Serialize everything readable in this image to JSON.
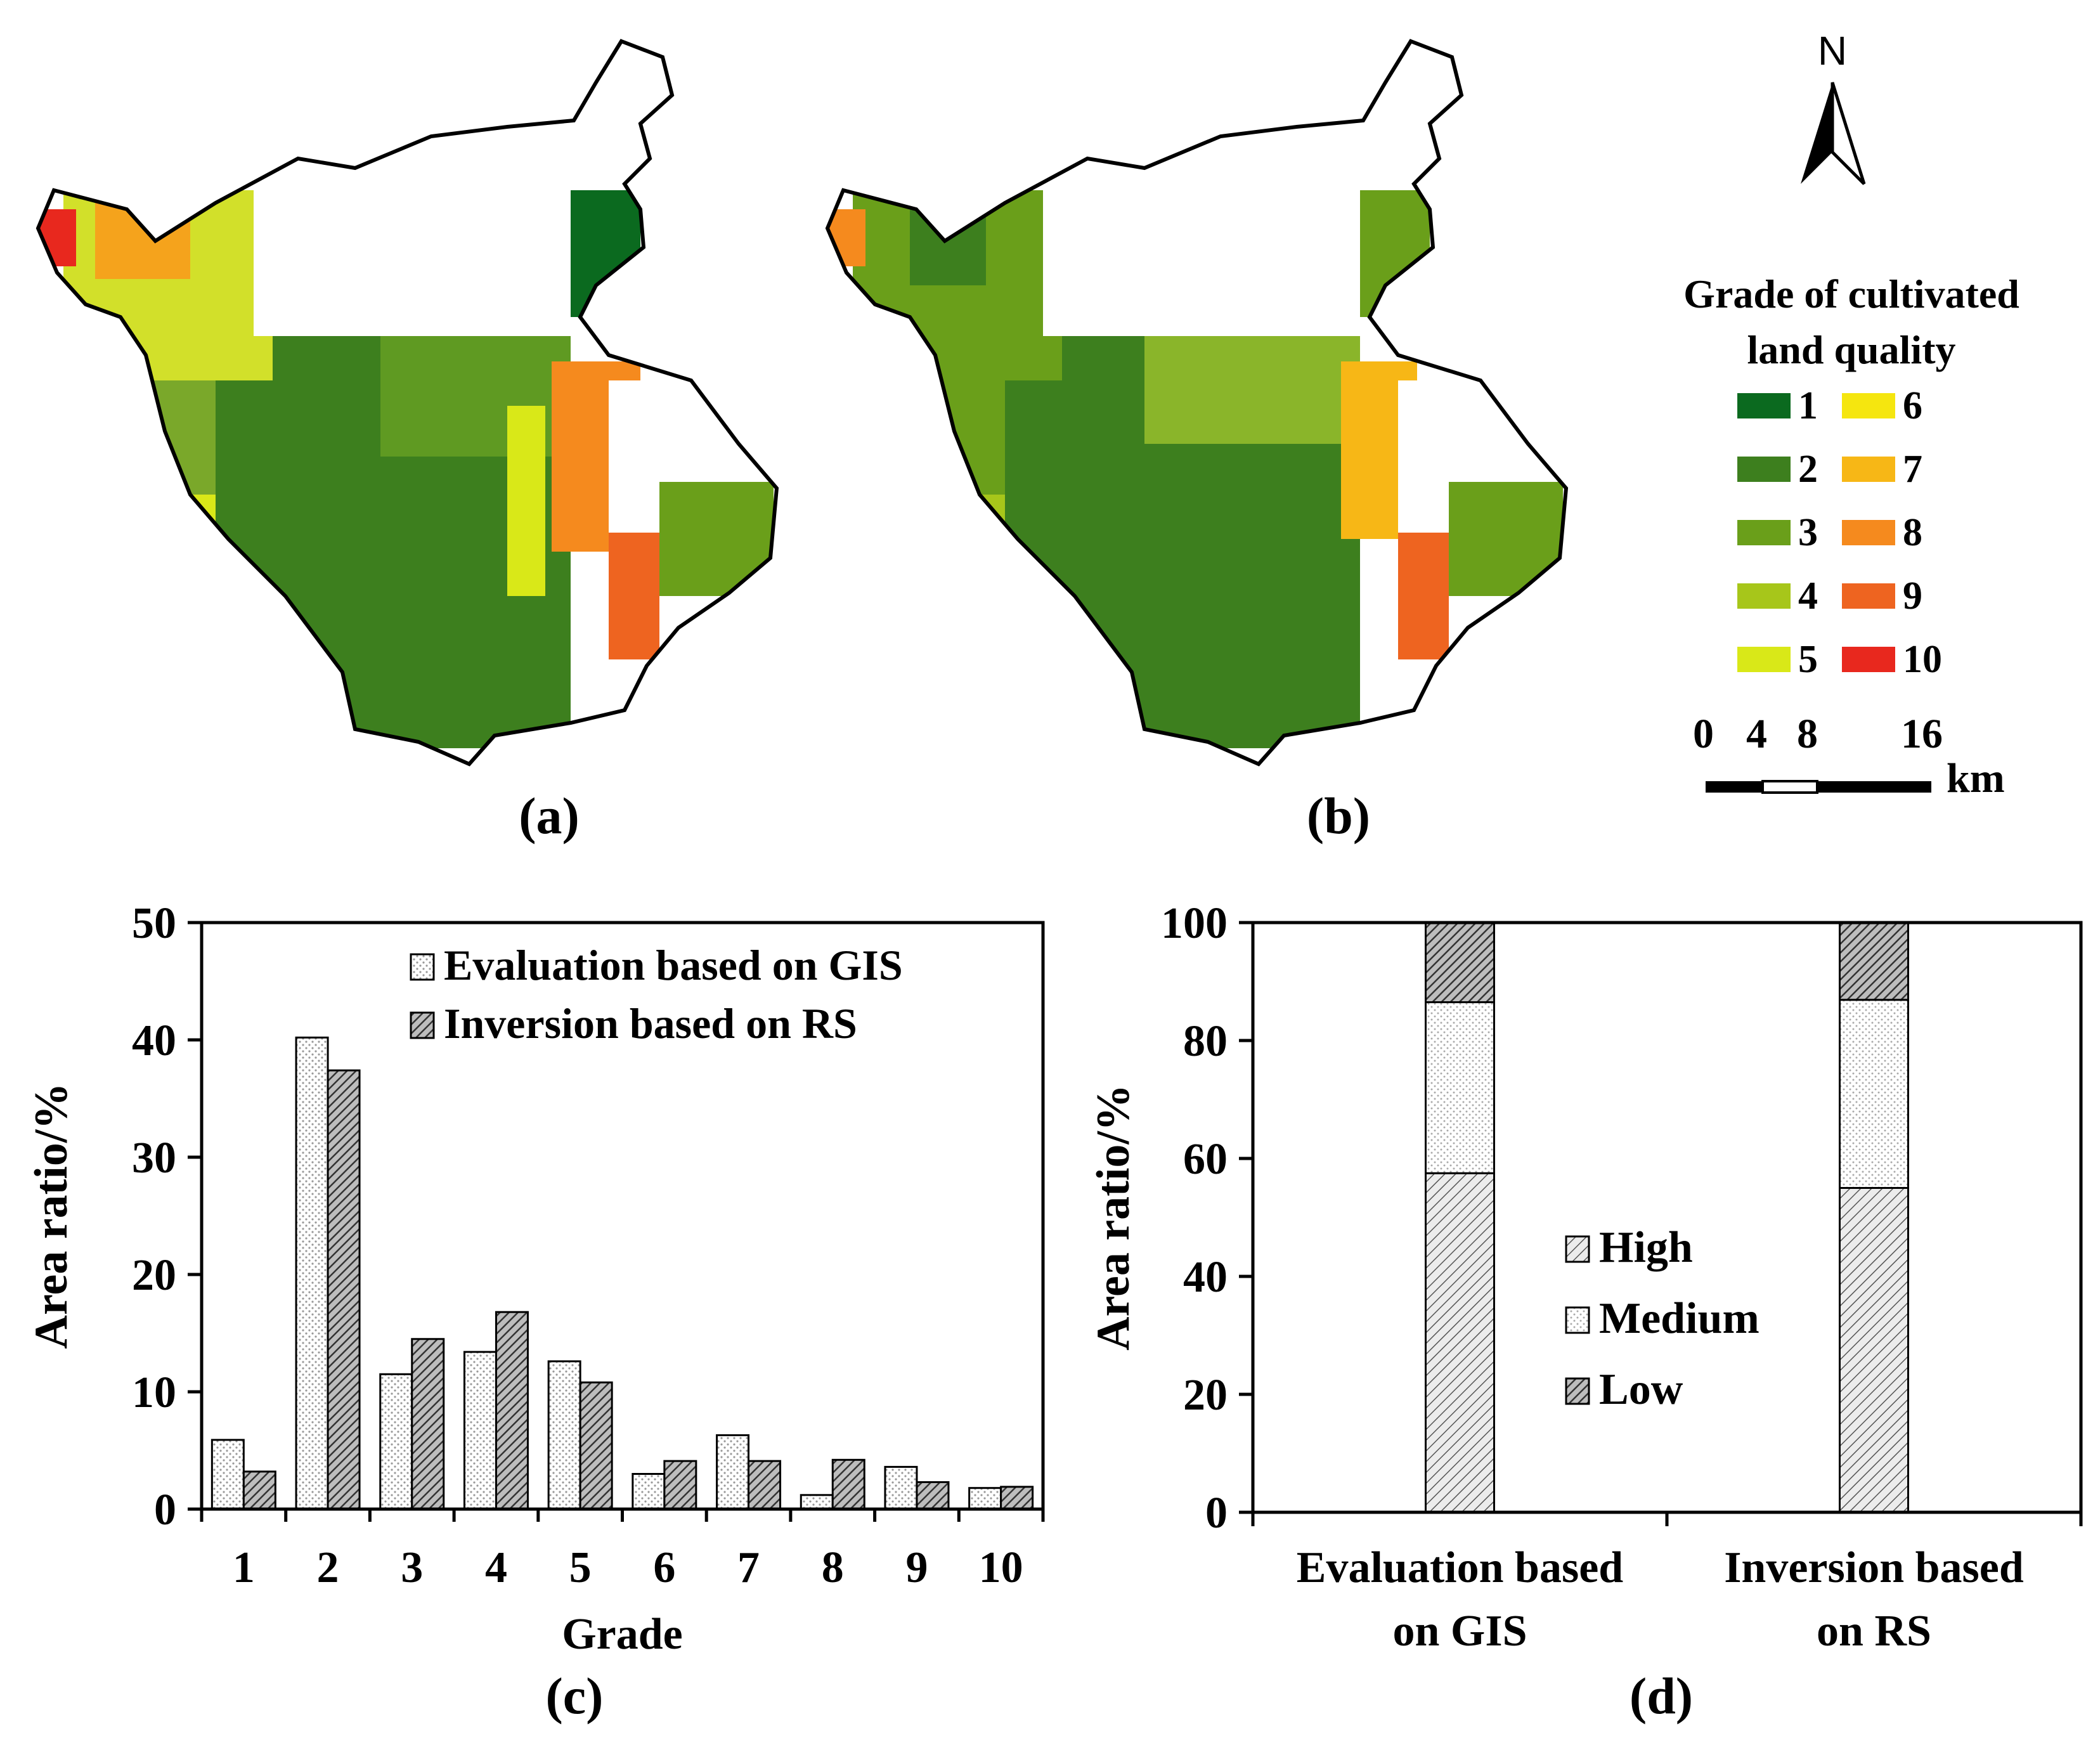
{
  "maps": [
    {
      "label": "(a)"
    },
    {
      "label": "(b)"
    }
  ],
  "map_colors": {
    "grade_1": "#0b6a1f",
    "grade_2": "#3d7f1e",
    "grade_3": "#6a9f1a",
    "grade_4": "#a7c61a",
    "grade_5": "#d9e818",
    "grade_6": "#f5e60f",
    "grade_7": "#f7b716",
    "grade_8": "#f58a1e",
    "grade_9": "#ee6420",
    "grade_10": "#e8281e"
  },
  "legend": {
    "title_line1": "Grade of cultivated",
    "title_line2": "land quality",
    "grades": [
      "1",
      "2",
      "3",
      "4",
      "5",
      "6",
      "7",
      "8",
      "9",
      "10"
    ]
  },
  "north_arrow": {
    "label": "N"
  },
  "scale_bar": {
    "labels": [
      "0",
      "4",
      "8",
      "16"
    ],
    "unit": "km"
  },
  "chart_data": [
    {
      "panel": "(c)",
      "type": "bar",
      "categories": [
        "1",
        "2",
        "3",
        "4",
        "5",
        "6",
        "7",
        "8",
        "9",
        "10"
      ],
      "series": [
        {
          "name": "Evaluation based on GIS",
          "values": [
            5.9,
            40.2,
            11.5,
            13.4,
            12.6,
            3.0,
            6.3,
            1.2,
            3.6,
            1.8
          ]
        },
        {
          "name": "Inversion based on RS",
          "values": [
            3.2,
            37.4,
            14.5,
            16.8,
            10.8,
            4.1,
            4.1,
            4.2,
            2.3,
            1.9
          ]
        }
      ],
      "xlabel": "Grade",
      "ylabel": "Area ratio/%",
      "ylim": [
        0,
        50
      ],
      "yticks": [
        "0",
        "10",
        "20",
        "30",
        "40",
        "50"
      ],
      "legend_position": "top-right"
    },
    {
      "panel": "(d)",
      "type": "bar",
      "stacked": true,
      "categories": [
        [
          "Evaluation based",
          "on GIS"
        ],
        [
          "Inversion based",
          "on RS"
        ]
      ],
      "series": [
        {
          "name": "High",
          "values": [
            57.5,
            55.0
          ]
        },
        {
          "name": "Medium",
          "values": [
            29.0,
            31.9
          ]
        },
        {
          "name": "Low",
          "values": [
            13.5,
            13.1
          ]
        }
      ],
      "xlabel": "",
      "ylabel": "Area ratio/%",
      "ylim": [
        0,
        100
      ],
      "yticks": [
        "0",
        "20",
        "40",
        "60",
        "80",
        "100"
      ],
      "legend_position": "center"
    }
  ]
}
